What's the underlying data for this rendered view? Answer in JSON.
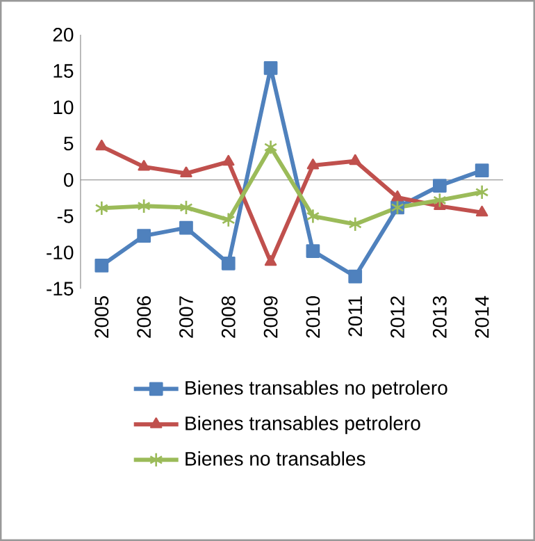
{
  "chart_data": {
    "type": "line",
    "categories": [
      "2005",
      "2006",
      "2007",
      "2008",
      "2009",
      "2010",
      "2011",
      "2012",
      "2013",
      "2014"
    ],
    "series": [
      {
        "name": "Bienes transables no petrolero",
        "color": "#4f81bd",
        "marker": "square",
        "values": [
          -11.8,
          -7.7,
          -6.6,
          -11.5,
          15.4,
          -9.8,
          -13.3,
          -3.8,
          -0.8,
          1.3
        ]
      },
      {
        "name": "Bienes transables petrolero",
        "color": "#c0504d",
        "marker": "triangle",
        "values": [
          4.6,
          1.8,
          0.9,
          2.5,
          -11.3,
          2.0,
          2.6,
          -2.4,
          -3.6,
          -4.5
        ]
      },
      {
        "name": "Bienes no transables",
        "color": "#9bbb59",
        "marker": "cross",
        "values": [
          -3.9,
          -3.6,
          -3.8,
          -5.5,
          4.5,
          -5.0,
          -6.1,
          -3.8,
          -2.8,
          -1.7
        ]
      }
    ],
    "ylim": [
      -15,
      20
    ],
    "yticks": [
      -15,
      -10,
      -5,
      0,
      5,
      10,
      15,
      20
    ],
    "legend": "bottom",
    "line_style": "solid"
  }
}
